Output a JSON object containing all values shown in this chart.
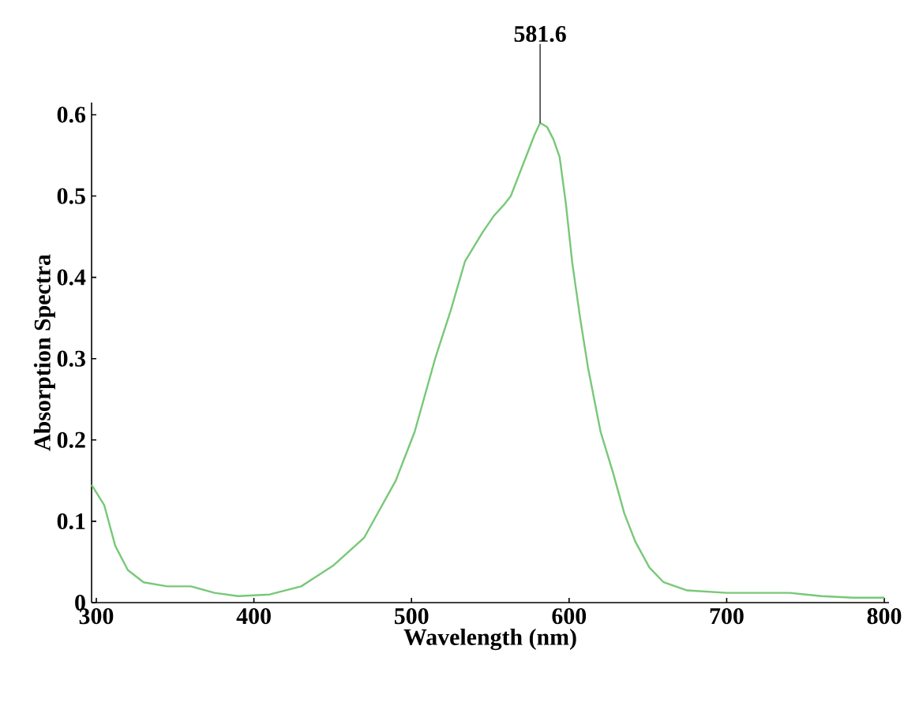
{
  "chart_data": {
    "type": "line",
    "xlabel": "Wavelength (nm)",
    "ylabel": "Absorption Spectra",
    "x": [
      297,
      305,
      312,
      320,
      330,
      345,
      360,
      375,
      390,
      410,
      430,
      438,
      450,
      470,
      490,
      502,
      515,
      525,
      534,
      545,
      552,
      559,
      563,
      567,
      573,
      578,
      581.6,
      586,
      590,
      594,
      598,
      602,
      607,
      612,
      620,
      628,
      635,
      642,
      651,
      660,
      675,
      700,
      720,
      740,
      760,
      780,
      800
    ],
    "series": [
      {
        "color": "#78c878",
        "values": [
          0.145,
          0.12,
          0.07,
          0.04,
          0.025,
          0.02,
          0.02,
          0.012,
          0.008,
          0.01,
          0.02,
          0.03,
          0.045,
          0.08,
          0.15,
          0.21,
          0.3,
          0.36,
          0.42,
          0.455,
          0.475,
          0.49,
          0.5,
          0.52,
          0.55,
          0.575,
          0.59,
          0.585,
          0.57,
          0.548,
          0.49,
          0.418,
          0.35,
          0.289,
          0.21,
          0.159,
          0.11,
          0.075,
          0.043,
          0.025,
          0.015,
          0.012,
          0.012,
          0.012,
          0.008,
          0.006,
          0.006
        ]
      }
    ],
    "xlim": [
      297,
      803
    ],
    "ylim": [
      0,
      0.615
    ],
    "xticks": [
      300,
      400,
      500,
      600,
      700,
      800
    ],
    "yticks": [
      0,
      0.1,
      0.2,
      0.3,
      0.4,
      0.5,
      0.6
    ],
    "annotations": [
      {
        "text": "581.6",
        "x": 581.6,
        "y": 0.59
      }
    ]
  }
}
